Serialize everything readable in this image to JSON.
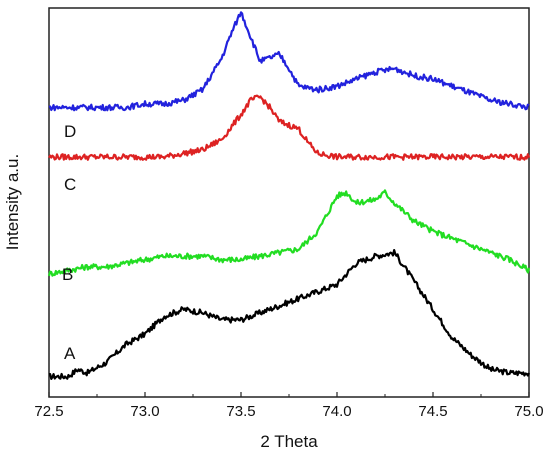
{
  "chart_data": {
    "type": "line",
    "title": "",
    "xlabel": "2 Theta",
    "ylabel": "Intensity a.u.",
    "xlim": [
      72.5,
      75.0
    ],
    "ylim": [
      0,
      100
    ],
    "y_ticks_shown": false,
    "grid": false,
    "legend": "none",
    "x_ticks": [
      "72.5",
      "73.0",
      "73.5",
      "74.0",
      "74.5",
      "75.0"
    ],
    "series": [
      {
        "name": "A",
        "color": "#000000",
        "x": [
          72.5,
          72.6,
          72.65,
          72.7,
          72.8,
          72.9,
          73.0,
          73.1,
          73.2,
          73.3,
          73.4,
          73.5,
          73.6,
          73.7,
          73.8,
          73.9,
          74.0,
          74.1,
          74.2,
          74.3,
          74.4,
          74.5,
          74.6,
          74.7,
          74.8,
          74.9,
          75.0
        ],
        "values": [
          1,
          1,
          3,
          2,
          5,
          10,
          13,
          18,
          20,
          19,
          17,
          17,
          19,
          21,
          23,
          25,
          27,
          33,
          35,
          36,
          28,
          20,
          12,
          7,
          3,
          2,
          2
        ]
      },
      {
        "name": "B",
        "color": "#22dd22",
        "x": [
          72.5,
          72.6,
          72.7,
          72.8,
          72.9,
          73.0,
          73.1,
          73.2,
          73.3,
          73.4,
          73.5,
          73.6,
          73.7,
          73.8,
          73.9,
          74.0,
          74.05,
          74.1,
          74.2,
          74.25,
          74.3,
          74.4,
          74.5,
          74.6,
          74.7,
          74.8,
          74.9,
          75.0
        ],
        "values": [
          30,
          31,
          32,
          32,
          33,
          34,
          35,
          35,
          35,
          34,
          34,
          35,
          36,
          37,
          42,
          52,
          53,
          50,
          51,
          53,
          50,
          45,
          42,
          40,
          38,
          36,
          34,
          31
        ]
      },
      {
        "name": "C",
        "color": "#dd2222",
        "x": [
          72.5,
          72.6,
          72.7,
          72.8,
          72.9,
          73.0,
          73.1,
          73.2,
          73.3,
          73.4,
          73.5,
          73.55,
          73.6,
          73.65,
          73.7,
          73.8,
          73.85,
          73.9,
          74.0,
          74.1,
          74.2,
          74.3,
          74.4,
          74.5,
          74.6,
          74.7,
          74.8,
          74.9,
          75.0
        ],
        "values": [
          63,
          63,
          63,
          63,
          63,
          63,
          63,
          64,
          65,
          68,
          75,
          79,
          80,
          77,
          73,
          71,
          67,
          64,
          63,
          63,
          63,
          63,
          63,
          63,
          63,
          63,
          63,
          63,
          63
        ]
      },
      {
        "name": "D",
        "color": "#2222dd",
        "x": [
          72.5,
          72.6,
          72.7,
          72.8,
          72.9,
          73.0,
          73.1,
          73.2,
          73.3,
          73.4,
          73.45,
          73.5,
          73.55,
          73.6,
          73.7,
          73.75,
          73.8,
          73.9,
          74.0,
          74.1,
          74.2,
          74.3,
          74.4,
          74.5,
          74.6,
          74.7,
          74.8,
          74.9,
          75.0
        ],
        "values": [
          77,
          77,
          77,
          77,
          77,
          78,
          78,
          79,
          82,
          91,
          98,
          104,
          97,
          90,
          92,
          88,
          83,
          82,
          83,
          85,
          87,
          88,
          86,
          85,
          83,
          81,
          79,
          78,
          77
        ]
      }
    ]
  }
}
